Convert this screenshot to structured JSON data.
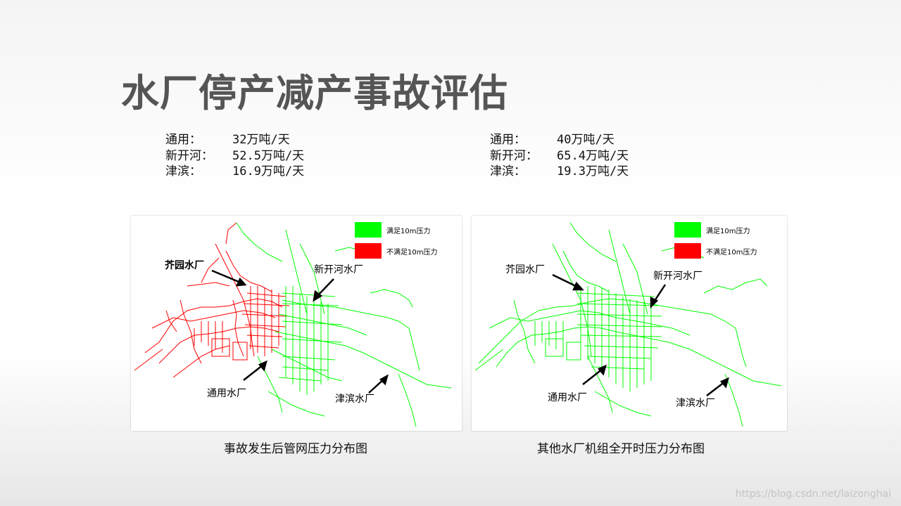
{
  "title": "水厂停产减产事故评估",
  "stats_left": [
    {
      "label": "通用：",
      "value": "32万吨/天"
    },
    {
      "label": "新开河：",
      "value": "52.5万吨/天"
    },
    {
      "label": "津滨：",
      "value": "16.9万吨/天"
    }
  ],
  "stats_right": [
    {
      "label": "通用：",
      "value": "40万吨/天"
    },
    {
      "label": "新开河：",
      "value": "65.4万吨/天"
    },
    {
      "label": "津滨：",
      "value": "19.3万吨/天"
    }
  ],
  "legend": {
    "ok_label": "满足10m压力",
    "bad_label": "不满足10m压力",
    "ok_color": "#00ff00",
    "bad_color": "#ff0000"
  },
  "left_map": {
    "plant_jieyuan": "芥园水厂",
    "plant_xinkaihe": "新开河水厂",
    "plant_tongyong": "通用水厂",
    "plant_jinbin": "津滨水厂",
    "caption": "事故发生后管网压力分布图"
  },
  "right_map": {
    "plant_jieyuan": "芥园水厂",
    "plant_xinkaihe": "新开河水厂",
    "plant_tongyong": "通用水厂",
    "plant_jinbin": "津滨水厂",
    "caption": "其他水厂机组全开时压力分布图"
  },
  "watermark": "https://blog.csdn.net/laizonghai"
}
